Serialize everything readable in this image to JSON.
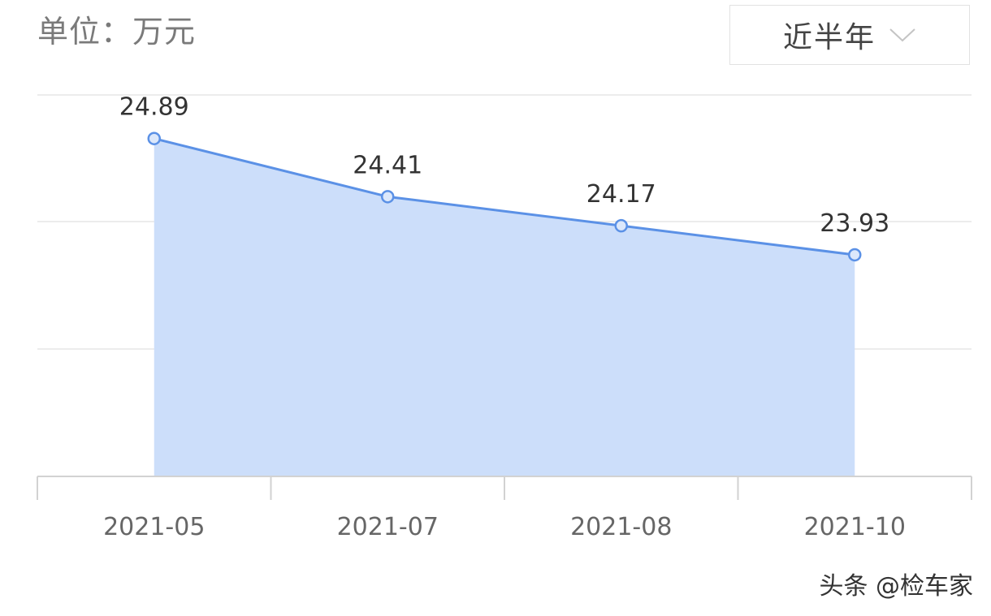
{
  "header": {
    "unit_label": "单位：万元",
    "period_selector": {
      "selected": "近半年",
      "icon": "chevron-down-icon"
    }
  },
  "chart_data": {
    "type": "area",
    "categories": [
      "2021-05",
      "2021-07",
      "2021-08",
      "2021-10"
    ],
    "series": [
      {
        "values": [
          24.89,
          24.41,
          24.17,
          23.93
        ],
        "data_labels": [
          "24.89",
          "24.41",
          "24.17",
          "23.93"
        ]
      }
    ],
    "title": "",
    "xlabel": "",
    "ylabel": "",
    "ylim": [
      22.1,
      25.25
    ],
    "grid": "horizontal",
    "y_tick_labels_visible": false,
    "colors": {
      "line": "#5b91e6",
      "fill": "#ccdefa",
      "marker_fill": "#dce8fb",
      "grid": "#e6e6e6",
      "axis": "#d2d2d2",
      "tick_text": "#666666",
      "data_label_text": "#333333"
    }
  },
  "watermark": "头条 @检车家"
}
